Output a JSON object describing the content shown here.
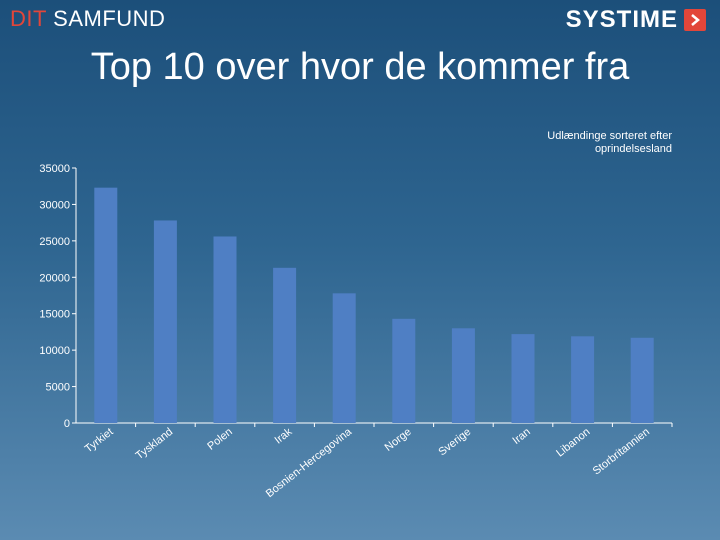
{
  "brand": {
    "left_part1": "DIT",
    "left_part2": "SAMFUND",
    "right_word": "SYSTIME",
    "accent_color": "#e2463a"
  },
  "slide_title": "Top 10 over hvor de kommer fra",
  "chart_data": {
    "type": "bar",
    "title": "",
    "legend_line1": "Udlændinge sorteret efter",
    "legend_line2": "oprindelsesland",
    "categories": [
      "Tyrkiet",
      "Tyskland",
      "Polen",
      "Irak",
      "Bosnien-Hercegovina",
      "Norge",
      "Sverige",
      "Iran",
      "Libanon",
      "Storbritannien"
    ],
    "values": [
      32300,
      27800,
      25600,
      21300,
      17800,
      14300,
      13000,
      12200,
      11900,
      11700
    ],
    "ylim": [
      0,
      35000
    ],
    "yticks": [
      "0",
      "5000",
      "10000",
      "15000",
      "20000",
      "25000",
      "30000",
      "35000"
    ],
    "bar_color": "#4f7fc4",
    "grid": false,
    "legend_position": "top-right"
  }
}
